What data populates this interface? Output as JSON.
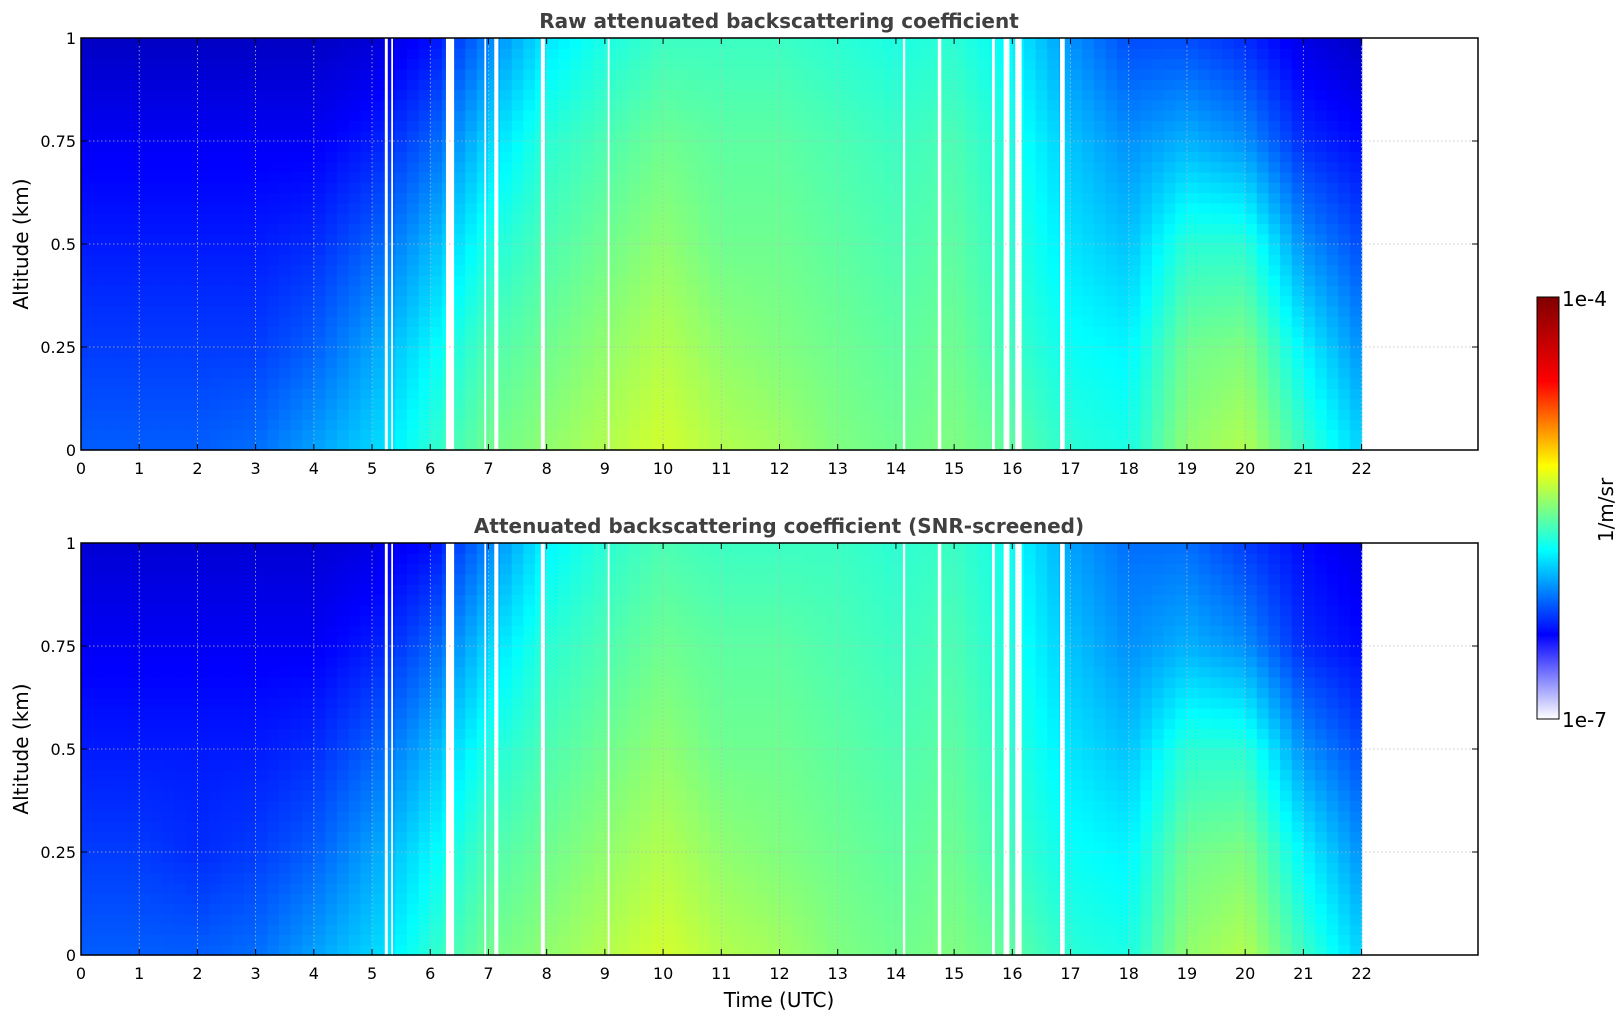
{
  "chart_data": [
    {
      "type": "heatmap",
      "title": "Raw attenuated backscattering coefficient",
      "xlabel": "",
      "ylabel": "Altitude (km)",
      "xlim": [
        0,
        24
      ],
      "ylim": [
        0,
        1
      ],
      "x_ticks": [
        "0",
        "1",
        "2",
        "3",
        "4",
        "5",
        "6",
        "7",
        "8",
        "9",
        "10",
        "11",
        "12",
        "13",
        "14",
        "15",
        "16",
        "17",
        "18",
        "19",
        "20",
        "21",
        "22"
      ],
      "y_ticks": [
        "0",
        "0.25",
        "0.5",
        "0.75",
        "1"
      ],
      "grid": true,
      "data_end_hour": 22,
      "time_hours": [
        0,
        1,
        2,
        3,
        4,
        5,
        6,
        7,
        8,
        9,
        10,
        11,
        12,
        13,
        14,
        15,
        16,
        17,
        18,
        19,
        20,
        21,
        22
      ],
      "altitude_km": [
        0,
        0.25,
        0.5,
        0.75,
        1
      ],
      "log10_backscatter_by_hour": [
        [
          -6.35,
          -6.45,
          -6.55,
          -6.65,
          -6.8
        ],
        [
          -6.35,
          -6.45,
          -6.55,
          -6.65,
          -6.8
        ],
        [
          -6.35,
          -6.45,
          -6.55,
          -6.65,
          -6.8
        ],
        [
          -6.3,
          -6.45,
          -6.55,
          -6.65,
          -6.8
        ],
        [
          -6.15,
          -6.35,
          -6.5,
          -6.65,
          -6.8
        ],
        [
          -6.0,
          -6.15,
          -6.35,
          -6.55,
          -6.75
        ],
        [
          -5.75,
          -5.9,
          -6.1,
          -6.35,
          -6.6
        ],
        [
          -5.55,
          -5.65,
          -5.8,
          -6.0,
          -6.25
        ],
        [
          -5.45,
          -5.55,
          -5.65,
          -5.75,
          -5.95
        ],
        [
          -5.35,
          -5.45,
          -5.55,
          -5.65,
          -5.8
        ],
        [
          -5.25,
          -5.35,
          -5.45,
          -5.55,
          -5.7
        ],
        [
          -5.35,
          -5.45,
          -5.55,
          -5.6,
          -5.7
        ],
        [
          -5.4,
          -5.5,
          -5.55,
          -5.6,
          -5.7
        ],
        [
          -5.5,
          -5.55,
          -5.6,
          -5.65,
          -5.75
        ],
        [
          -5.55,
          -5.6,
          -5.65,
          -5.7,
          -5.8
        ],
        [
          -5.5,
          -5.55,
          -5.6,
          -5.65,
          -5.75
        ],
        [
          -5.6,
          -5.7,
          -5.75,
          -5.8,
          -5.9
        ],
        [
          -5.75,
          -5.85,
          -5.95,
          -6.05,
          -6.2
        ],
        [
          -5.8,
          -5.9,
          -6.05,
          -6.2,
          -6.4
        ],
        [
          -5.45,
          -5.55,
          -5.75,
          -6.1,
          -6.4
        ],
        [
          -5.35,
          -5.5,
          -5.75,
          -6.2,
          -6.5
        ],
        [
          -5.7,
          -5.9,
          -6.2,
          -6.5,
          -6.7
        ],
        [
          -6.0,
          -6.2,
          -6.4,
          -6.6,
          -6.8
        ]
      ],
      "no_data_gaps_hours": [
        [
          5.22,
          5.27
        ],
        [
          5.33,
          5.36
        ],
        [
          6.27,
          6.41
        ],
        [
          6.93,
          6.96
        ],
        [
          7.1,
          7.17
        ],
        [
          7.9,
          7.97
        ],
        [
          9.05,
          9.08
        ],
        [
          14.12,
          14.16
        ],
        [
          14.72,
          14.78
        ],
        [
          15.65,
          15.7
        ],
        [
          15.85,
          15.95
        ],
        [
          16.05,
          16.16
        ],
        [
          16.82,
          16.9
        ]
      ]
    },
    {
      "type": "heatmap",
      "title": "Attenuated backscattering coefficient (SNR-screened)",
      "xlabel": "Time (UTC)",
      "ylabel": "Altitude (km)",
      "xlim": [
        0,
        24
      ],
      "ylim": [
        0,
        1
      ],
      "x_ticks": [
        "0",
        "1",
        "2",
        "3",
        "4",
        "5",
        "6",
        "7",
        "8",
        "9",
        "10",
        "11",
        "12",
        "13",
        "14",
        "15",
        "16",
        "17",
        "18",
        "19",
        "20",
        "21",
        "22"
      ],
      "y_ticks": [
        "0",
        "0.25",
        "0.5",
        "0.75",
        "1"
      ],
      "grid": true,
      "data_end_hour": 22,
      "time_hours": [
        0,
        1,
        2,
        3,
        4,
        5,
        6,
        7,
        8,
        9,
        10,
        11,
        12,
        13,
        14,
        15,
        16,
        17,
        18,
        19,
        20,
        21,
        22
      ],
      "altitude_km": [
        0,
        0.25,
        0.5,
        0.75,
        1
      ],
      "log10_backscatter_by_hour": [
        [
          -6.35,
          -6.45,
          -6.55,
          -6.65,
          -6.75
        ],
        [
          -6.35,
          -6.45,
          -6.55,
          -6.65,
          -6.75
        ],
        [
          -6.35,
          -6.5,
          -6.55,
          -6.65,
          -6.75
        ],
        [
          -6.3,
          -6.45,
          -6.55,
          -6.65,
          -6.75
        ],
        [
          -6.15,
          -6.35,
          -6.5,
          -6.65,
          -6.75
        ],
        [
          -6.0,
          -6.15,
          -6.35,
          -6.55,
          -6.7
        ],
        [
          -5.75,
          -5.9,
          -6.1,
          -6.35,
          -6.6
        ],
        [
          -5.55,
          -5.65,
          -5.8,
          -6.0,
          -6.25
        ],
        [
          -5.45,
          -5.55,
          -5.65,
          -5.75,
          -5.9
        ],
        [
          -5.35,
          -5.45,
          -5.55,
          -5.65,
          -5.75
        ],
        [
          -5.25,
          -5.35,
          -5.45,
          -5.55,
          -5.65
        ],
        [
          -5.35,
          -5.45,
          -5.55,
          -5.6,
          -5.7
        ],
        [
          -5.4,
          -5.5,
          -5.55,
          -5.6,
          -5.7
        ],
        [
          -5.5,
          -5.55,
          -5.6,
          -5.65,
          -5.7
        ],
        [
          -5.55,
          -5.6,
          -5.65,
          -5.7,
          -5.75
        ],
        [
          -5.5,
          -5.55,
          -5.6,
          -5.65,
          -5.7
        ],
        [
          -5.6,
          -5.7,
          -5.75,
          -5.8,
          -5.85
        ],
        [
          -5.75,
          -5.85,
          -5.95,
          -6.05,
          -6.15
        ],
        [
          -5.8,
          -5.9,
          -6.05,
          -6.2,
          -6.3
        ],
        [
          -5.45,
          -5.55,
          -5.75,
          -6.1,
          -6.3
        ],
        [
          -5.35,
          -5.5,
          -5.75,
          -6.2,
          -6.45
        ],
        [
          -5.7,
          -5.9,
          -6.2,
          -6.5,
          -6.6
        ],
        [
          -6.0,
          -6.2,
          -6.4,
          -6.6,
          -6.7
        ]
      ],
      "no_data_gaps_hours": [
        [
          5.22,
          5.27
        ],
        [
          5.33,
          5.36
        ],
        [
          6.27,
          6.41
        ],
        [
          6.93,
          6.96
        ],
        [
          7.1,
          7.17
        ],
        [
          7.9,
          7.97
        ],
        [
          9.05,
          9.08
        ],
        [
          14.12,
          14.16
        ],
        [
          14.72,
          14.78
        ],
        [
          15.65,
          15.7
        ],
        [
          15.85,
          15.95
        ],
        [
          16.05,
          16.16
        ],
        [
          16.82,
          16.9
        ]
      ]
    }
  ],
  "colorbar": {
    "label": "1/m/sr",
    "min_label": "1e-7",
    "max_label": "1e-4",
    "log10_range": [
      -7,
      -4
    ],
    "colormap": "jet",
    "colors": [
      "#ffffff",
      "#0000ff",
      "#00ffff",
      "#ffff00",
      "#ff0000",
      "#800000"
    ]
  }
}
